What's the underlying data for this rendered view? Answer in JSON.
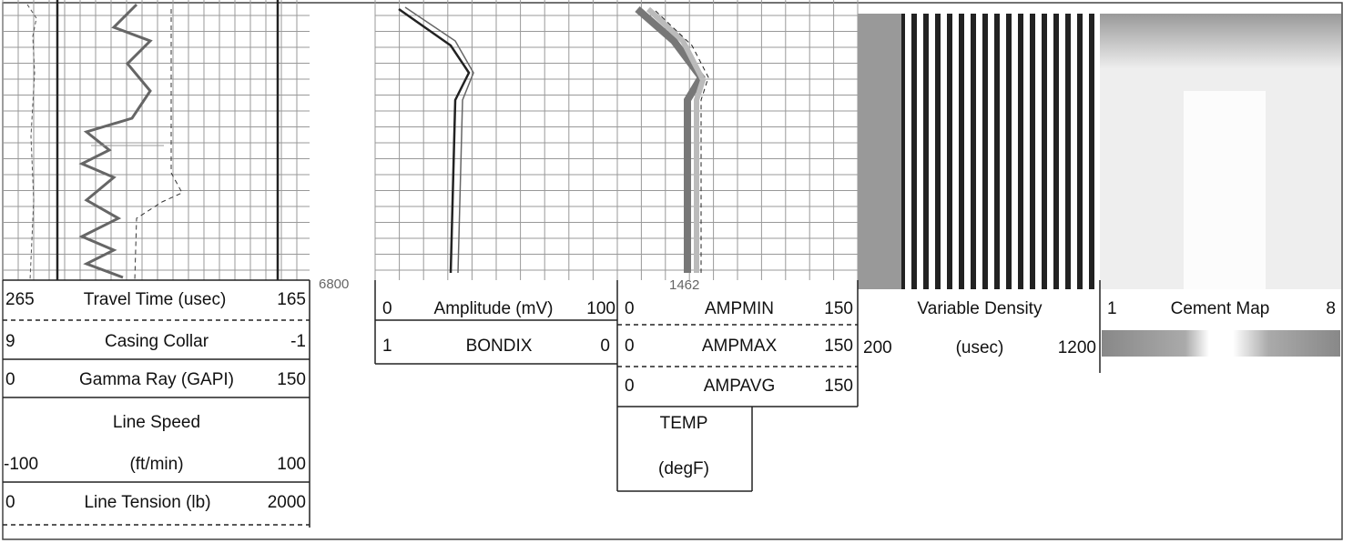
{
  "tracks": [
    {
      "rows": [
        {
          "left": "265",
          "name": "Travel Time (usec)",
          "right": "165"
        },
        {
          "left": "9",
          "name": "Casing Collar",
          "right": "-1"
        },
        {
          "left": "0",
          "name": "Gamma Ray (GAPI)",
          "right": "150"
        },
        {
          "name": "Line Speed",
          "left": "-100",
          "unit": "(ft/min)",
          "right": "100"
        },
        {
          "left": "0",
          "name": "Line Tension (lb)",
          "right": "2000"
        }
      ]
    },
    {
      "depth": "6800"
    },
    {
      "rows": [
        {
          "left": "0",
          "name": "Amplitude (mV)",
          "right": "100"
        },
        {
          "left": "1",
          "name": "BONDIX",
          "right": "0"
        }
      ]
    },
    {
      "reading": "1462",
      "rows": [
        {
          "left": "0",
          "name": "AMPMIN",
          "right": "150"
        },
        {
          "left": "0",
          "name": "AMPMAX",
          "right": "150"
        },
        {
          "left": "0",
          "name": "AMPAVG",
          "right": "150"
        },
        {
          "name": "TEMP",
          "unit": "(degF)"
        }
      ]
    },
    {
      "rows": [
        {
          "name": "Variable Density",
          "left": "200",
          "unit": "(usec)",
          "right": "1200"
        }
      ]
    },
    {
      "rows": [
        {
          "left": "1",
          "name": "Cement Map",
          "right": "8"
        }
      ]
    }
  ]
}
